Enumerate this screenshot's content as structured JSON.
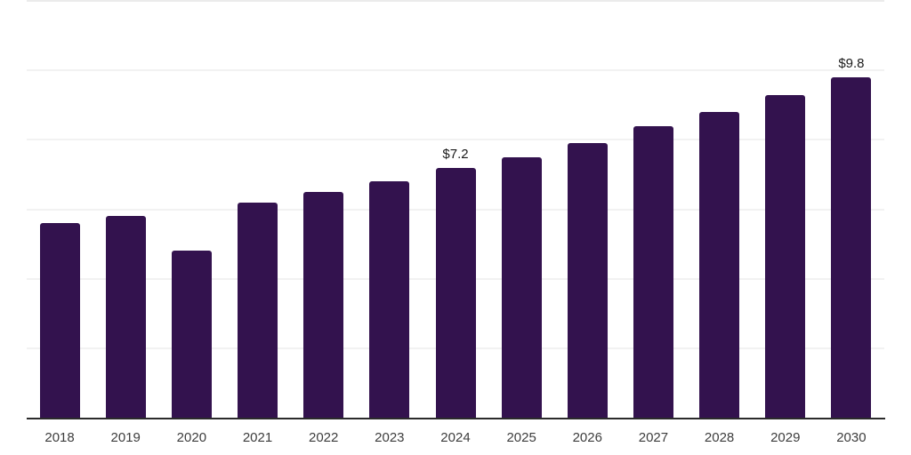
{
  "chart_data": {
    "type": "bar",
    "title": "",
    "xlabel": "",
    "ylabel": "",
    "categories": [
      "2018",
      "2019",
      "2020",
      "2021",
      "2022",
      "2023",
      "2024",
      "2025",
      "2026",
      "2027",
      "2028",
      "2029",
      "2030"
    ],
    "values": [
      5.6,
      5.8,
      4.8,
      6.2,
      6.5,
      6.8,
      7.2,
      7.5,
      7.9,
      8.4,
      8.8,
      9.3,
      9.8
    ],
    "bar_labels": [
      "",
      "",
      "",
      "",
      "",
      "",
      "$7.2",
      "",
      "",
      "",
      "",
      "",
      "$9.8"
    ],
    "ylim": [
      0,
      12
    ],
    "gridline_step": 2,
    "grid": "horizontal-only",
    "legend": "none",
    "y_tick_labels_visible": false,
    "colors": {
      "bar": "#33124E",
      "background": "#ffffff",
      "gridline": "#f1f1f1",
      "top_gridline": "#e9e9e9",
      "axis_line": "#2b2b2b",
      "bar_label_text": "#1a1a1a",
      "tick_label_text": "#3d3d3d"
    }
  }
}
